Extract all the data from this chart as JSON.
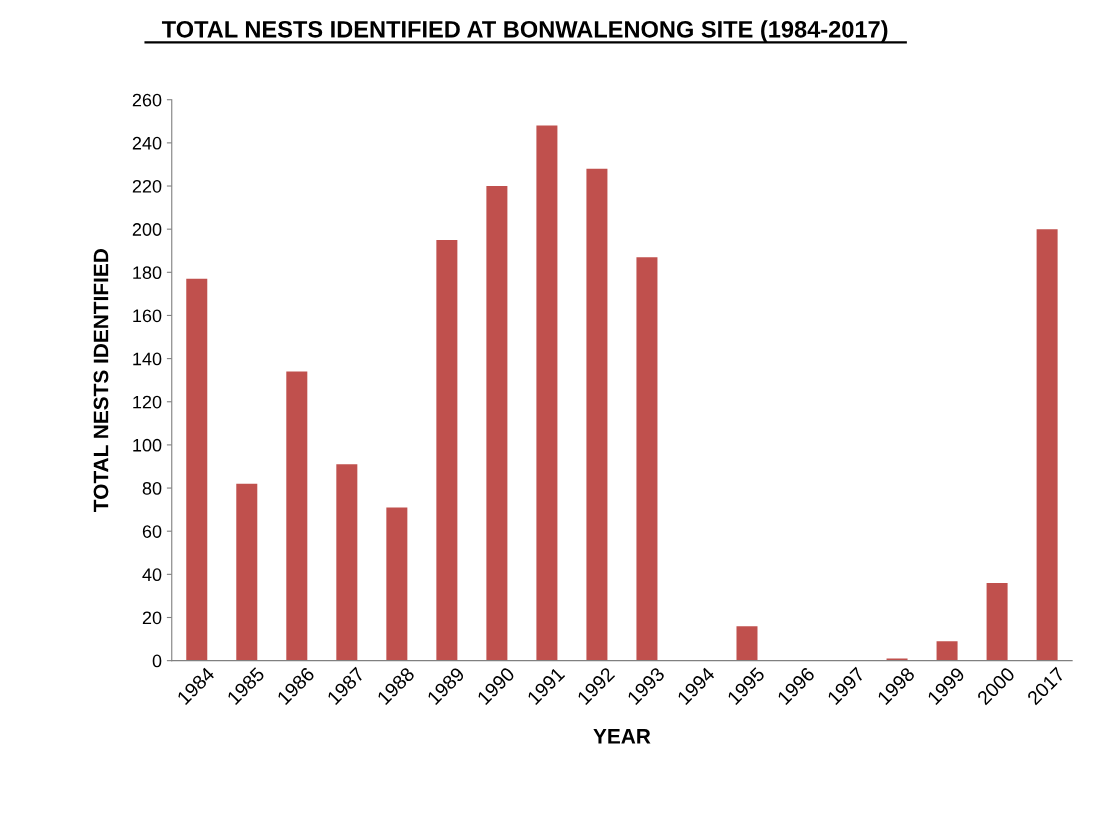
{
  "chart_data": {
    "type": "bar",
    "title": "TOTAL NESTS IDENTIFIED AT BONWALENONG SITE (1984-2017)",
    "xlabel": "YEAR",
    "ylabel": "TOTAL NESTS IDENTIFIED",
    "categories": [
      "1984",
      "1985",
      "1986",
      "1987",
      "1988",
      "1989",
      "1990",
      "1991",
      "1992",
      "1993",
      "1994",
      "1995",
      "1996",
      "1997",
      "1998",
      "1999",
      "2000",
      "2017"
    ],
    "values": [
      177,
      82,
      134,
      91,
      71,
      195,
      220,
      248,
      228,
      187,
      0,
      16,
      0,
      0,
      1,
      9,
      36,
      200
    ],
    "color": "#c0504d",
    "ylim": [
      0,
      260
    ],
    "yticks": [
      0,
      20,
      40,
      60,
      80,
      100,
      120,
      140,
      160,
      180,
      200,
      220,
      240,
      260
    ],
    "grid": false
  }
}
